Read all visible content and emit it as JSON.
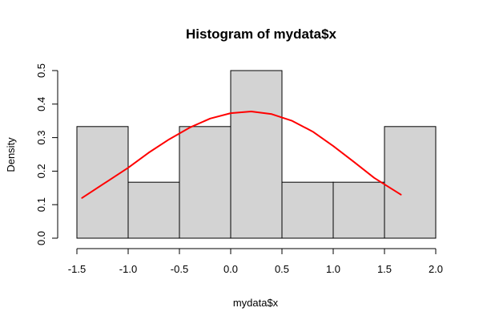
{
  "chart_data": {
    "type": "bar",
    "title": "Histogram of mydata$x",
    "xlabel": "mydata$x",
    "ylabel": "Density",
    "xlim": [
      -1.5,
      2.0
    ],
    "ylim": [
      0,
      0.5
    ],
    "x_ticks": [
      "-1.5",
      "-1.0",
      "-0.5",
      "0.0",
      "0.5",
      "1.0",
      "1.5",
      "2.0"
    ],
    "y_ticks": [
      "0.0",
      "0.1",
      "0.2",
      "0.3",
      "0.4",
      "0.5"
    ],
    "bins": [
      {
        "from": -1.5,
        "to": -1.0,
        "density": 0.333
      },
      {
        "from": -1.0,
        "to": -0.5,
        "density": 0.167
      },
      {
        "from": -0.5,
        "to": 0.0,
        "density": 0.333
      },
      {
        "from": 0.0,
        "to": 0.5,
        "density": 0.5
      },
      {
        "from": 0.5,
        "to": 1.0,
        "density": 0.167
      },
      {
        "from": 1.0,
        "to": 1.5,
        "density": 0.167
      },
      {
        "from": 1.5,
        "to": 2.0,
        "density": 0.333
      }
    ],
    "bar_fill": "#d3d3d3",
    "bar_stroke": "#000000",
    "density_curve": {
      "color": "#ff0000",
      "x": [
        -1.45,
        -1.2,
        -1.0,
        -0.8,
        -0.6,
        -0.4,
        -0.2,
        0.0,
        0.2,
        0.4,
        0.6,
        0.8,
        1.0,
        1.2,
        1.4,
        1.66
      ],
      "y": [
        0.12,
        0.17,
        0.21,
        0.255,
        0.295,
        0.33,
        0.357,
        0.373,
        0.378,
        0.37,
        0.35,
        0.318,
        0.275,
        0.228,
        0.18,
        0.13
      ]
    }
  }
}
